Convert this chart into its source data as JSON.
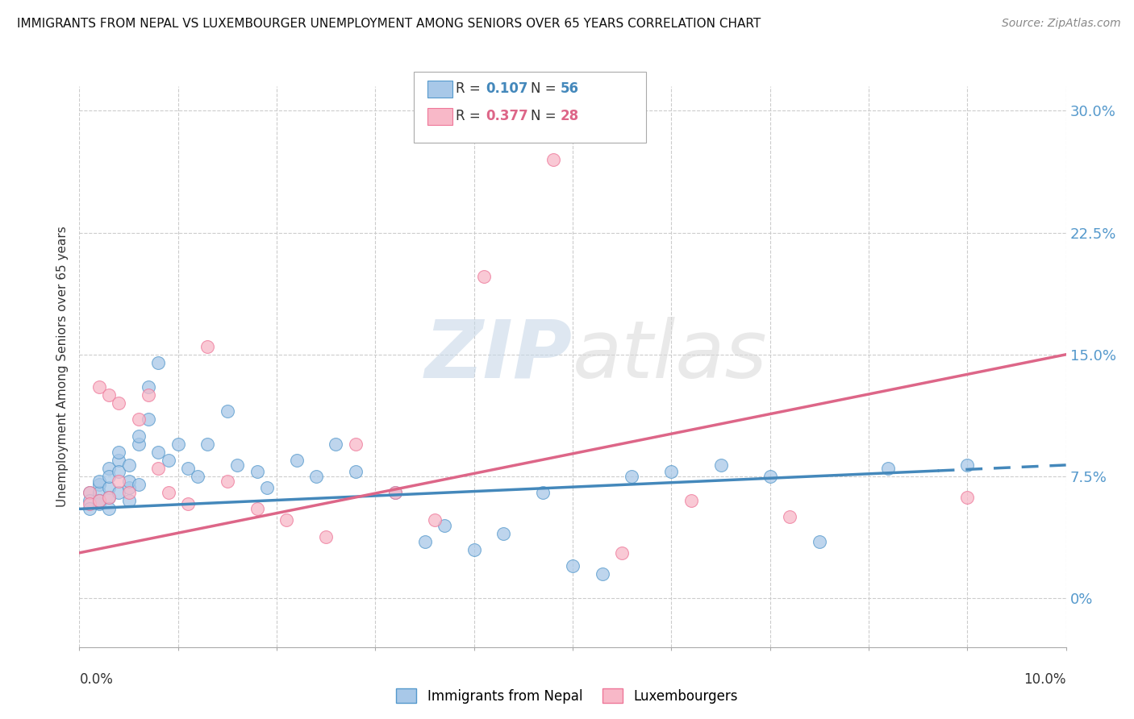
{
  "title": "IMMIGRANTS FROM NEPAL VS LUXEMBOURGER UNEMPLOYMENT AMONG SENIORS OVER 65 YEARS CORRELATION CHART",
  "source": "Source: ZipAtlas.com",
  "ylabel": "Unemployment Among Seniors over 65 years",
  "ytick_labels": [
    "0%",
    "7.5%",
    "15.0%",
    "22.5%",
    "30.0%"
  ],
  "ytick_values": [
    0.0,
    0.075,
    0.15,
    0.225,
    0.3
  ],
  "xmin": 0.0,
  "xmax": 0.1,
  "ymin": -0.03,
  "ymax": 0.315,
  "r1": "0.107",
  "n1": "56",
  "r2": "0.377",
  "n2": "28",
  "series1_name": "Immigrants from Nepal",
  "series2_name": "Luxembourgers",
  "series1_color": "#a8c8e8",
  "series2_color": "#f8b8c8",
  "series1_edge": "#5599cc",
  "series2_edge": "#ee7799",
  "trendline1_color": "#4488bb",
  "trendline2_color": "#dd6688",
  "watermark": "ZIPatlas",
  "nepal_x": [
    0.001,
    0.001,
    0.001,
    0.002,
    0.002,
    0.002,
    0.002,
    0.002,
    0.003,
    0.003,
    0.003,
    0.003,
    0.003,
    0.004,
    0.004,
    0.004,
    0.004,
    0.005,
    0.005,
    0.005,
    0.005,
    0.006,
    0.006,
    0.006,
    0.007,
    0.007,
    0.008,
    0.008,
    0.009,
    0.01,
    0.011,
    0.012,
    0.013,
    0.015,
    0.016,
    0.018,
    0.019,
    0.022,
    0.024,
    0.026,
    0.028,
    0.032,
    0.035,
    0.037,
    0.04,
    0.043,
    0.047,
    0.05,
    0.053,
    0.056,
    0.06,
    0.065,
    0.07,
    0.075,
    0.082,
    0.09
  ],
  "nepal_y": [
    0.065,
    0.06,
    0.055,
    0.07,
    0.065,
    0.058,
    0.072,
    0.06,
    0.08,
    0.068,
    0.062,
    0.075,
    0.055,
    0.085,
    0.09,
    0.078,
    0.065,
    0.082,
    0.068,
    0.072,
    0.06,
    0.095,
    0.1,
    0.07,
    0.13,
    0.11,
    0.145,
    0.09,
    0.085,
    0.095,
    0.08,
    0.075,
    0.095,
    0.115,
    0.082,
    0.078,
    0.068,
    0.085,
    0.075,
    0.095,
    0.078,
    0.065,
    0.035,
    0.045,
    0.03,
    0.04,
    0.065,
    0.02,
    0.015,
    0.075,
    0.078,
    0.082,
    0.075,
    0.035,
    0.08,
    0.082
  ],
  "lux_x": [
    0.001,
    0.001,
    0.002,
    0.002,
    0.003,
    0.003,
    0.004,
    0.004,
    0.005,
    0.006,
    0.007,
    0.008,
    0.009,
    0.011,
    0.013,
    0.015,
    0.018,
    0.021,
    0.025,
    0.028,
    0.032,
    0.036,
    0.041,
    0.048,
    0.055,
    0.062,
    0.072,
    0.09
  ],
  "lux_y": [
    0.065,
    0.058,
    0.13,
    0.06,
    0.125,
    0.062,
    0.12,
    0.072,
    0.065,
    0.11,
    0.125,
    0.08,
    0.065,
    0.058,
    0.155,
    0.072,
    0.055,
    0.048,
    0.038,
    0.095,
    0.065,
    0.048,
    0.198,
    0.27,
    0.028,
    0.06,
    0.05,
    0.062
  ]
}
